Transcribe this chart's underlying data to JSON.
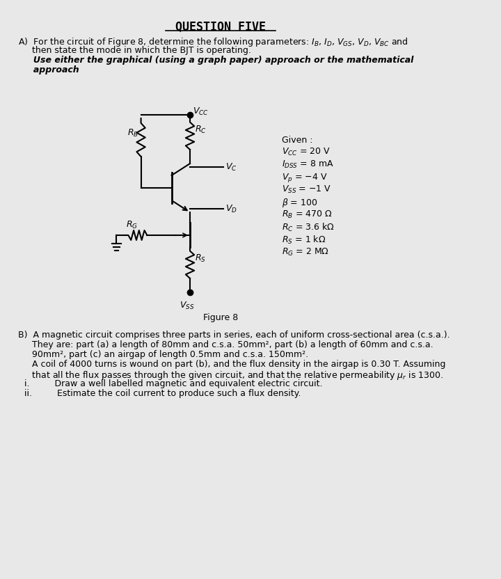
{
  "bg_color": "#e8e8e8",
  "title": "QUESTION FIVE",
  "part_a_line1": "A)  For the circuit of Figure 8, determine the following parameters: $I_B$, $I_D$, $V_{GS}$, $V_D$, $V_{BC}$ and",
  "part_a_line2": "     then state the mode in which the BJT is operating.",
  "part_a_line3": "     Use either the graphical (using a graph paper) approach or the mathematical",
  "part_a_line4": "     approach",
  "given_label": "Given :",
  "given_params": [
    "$V_{CC}$ = 20 V",
    "$I_{DSS}$ = 8 mA",
    "$V_p$ = −4 V",
    "$V_{SS}$ = −1 V",
    "$\\beta$ = 100",
    "$R_B$ = 470 Ω",
    "$R_C$ = 3.6 kΩ",
    "$R_S$ = 1 kΩ",
    "$R_G$ = 2 MΩ"
  ],
  "figure_label": "Figure 8",
  "part_b_line1": "B)  A magnetic circuit comprises three parts in series, each of uniform cross-sectional area (c.s.a.).",
  "part_b_line2": "     They are: part (a) a length of 80mm and c.s.a. 50mm², part (b) a length of 60mm and c.s.a.",
  "part_b_line3": "     90mm², part (c) an airgap of length 0.5mm and c.s.a. 150mm².",
  "part_b_line4": "     A coil of 4000 turns is wound on part (b), and the flux density in the airgap is 0.30 T. Assuming",
  "part_b_line5": "     that all the flux passes through the given circuit, and that the relative permeability $\\mu_r$ is 1300.",
  "part_b_i": "i.         Draw a well labelled magnetic and equivalent electric circuit.",
  "part_b_ii": "ii.         Estimate the coil current to produce such a flux density."
}
